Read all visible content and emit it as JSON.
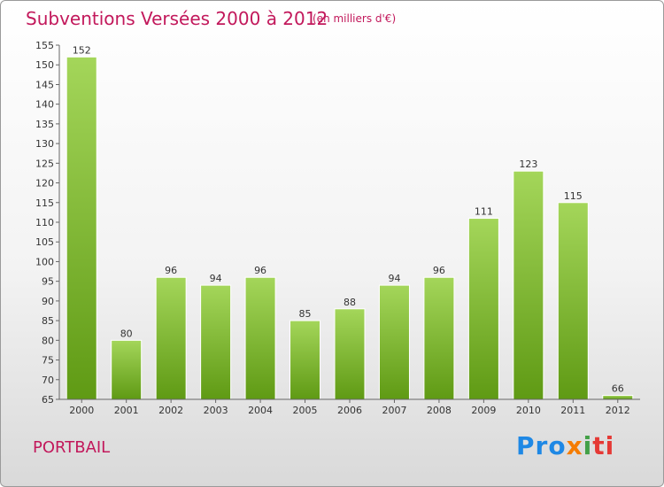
{
  "header": {
    "title": "Subventions Versées 2000 à 2012",
    "subtitle": "(en milliers d'€)"
  },
  "footer": {
    "commune": "PORTBAIL",
    "logo": [
      "Pro",
      "x",
      "i",
      "ti"
    ]
  },
  "colors": {
    "bar_top": "#a4d65a",
    "bar_bottom": "#5f9a14",
    "title": "#c2185b"
  },
  "chart_data": {
    "type": "bar",
    "title": "Subventions Versées 2000 à 2012",
    "subtitle": "(en milliers d'€)",
    "categories": [
      "2000",
      "2001",
      "2002",
      "2003",
      "2004",
      "2005",
      "2006",
      "2007",
      "2008",
      "2009",
      "2010",
      "2011",
      "2012"
    ],
    "values": [
      152,
      80,
      96,
      94,
      96,
      85,
      88,
      94,
      96,
      111,
      123,
      115,
      66
    ],
    "ylim": [
      65,
      155
    ],
    "yticks": [
      65,
      70,
      75,
      80,
      85,
      90,
      95,
      100,
      105,
      110,
      115,
      120,
      125,
      130,
      135,
      140,
      145,
      150,
      155
    ],
    "grid": false,
    "xlabel": "",
    "ylabel": ""
  }
}
